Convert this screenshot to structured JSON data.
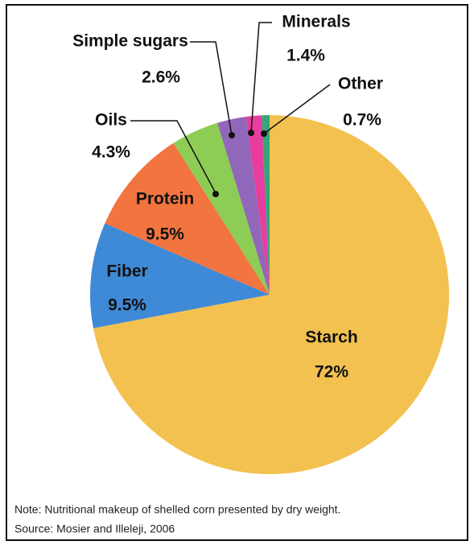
{
  "chart_data": {
    "type": "pie",
    "categories": [
      "Starch",
      "Fiber",
      "Protein",
      "Oils",
      "Simple sugars",
      "Minerals",
      "Other"
    ],
    "values": [
      72,
      9.5,
      9.5,
      4.3,
      2.6,
      1.4,
      0.7
    ],
    "value_labels": [
      "72%",
      "9.5%",
      "9.5%",
      "4.3%",
      "2.6%",
      "1.4%",
      "0.7%"
    ],
    "colors": [
      "#f3c150",
      "#3f8ad6",
      "#f2743f",
      "#8dcd55",
      "#9167b9",
      "#e83c9e",
      "#35a57c"
    ],
    "note": [
      "Note: Nutritional makeup of shelled corn presented by dry weight.",
      "Source: Mosier and Illeleji, 2006"
    ]
  }
}
